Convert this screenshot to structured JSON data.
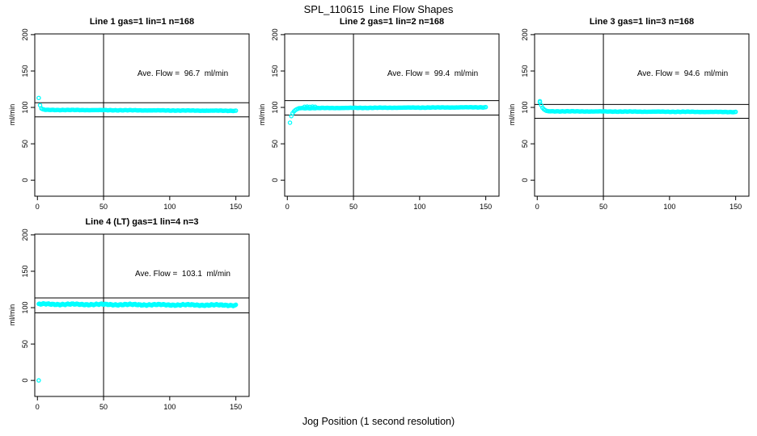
{
  "page_title": "SPL_110615  Line Flow Shapes",
  "chart_data": {
    "type": "scatter",
    "title": "SPL_110615  Line Flow Shapes",
    "xlabel": "Jog Position (1 second resolution)",
    "ylabel": "ml/min",
    "point_color": "#00FFFF",
    "line_color": "#000000",
    "x_ticks": [
      0,
      50,
      100,
      150
    ],
    "y_ticks": [
      0,
      50,
      100,
      150,
      200
    ],
    "xlim": [
      -2,
      160
    ],
    "ylim": [
      -22,
      201
    ],
    "vline_x": 50,
    "grid": false,
    "legend": "none",
    "panels": [
      {
        "title": "Line 1 gas=1 lin=1 n=168",
        "n": 168,
        "ave_flow": 96.7,
        "ave_flow_label": "Ave. Flow =  96.7  ml/min",
        "hlines": [
          106.4,
          87.0
        ],
        "head_points": [
          [
            1,
            113
          ],
          [
            2,
            103
          ],
          [
            3,
            98.6
          ],
          [
            4,
            97.6
          ],
          [
            5,
            97.1
          ]
        ],
        "band": {
          "x_from": 6,
          "x_to": 150,
          "step": 1,
          "y_from": 96.6,
          "y_to": 95.4,
          "jitter": 0.3
        },
        "extra_points": []
      },
      {
        "title": "Line 2 gas=1 lin=2 n=168",
        "n": 168,
        "ave_flow": 99.4,
        "ave_flow_label": "Ave. Flow =  99.4  ml/min",
        "hlines": [
          109.3,
          89.5
        ],
        "head_points": [
          [
            2,
            79
          ],
          [
            3,
            88
          ],
          [
            4,
            92
          ],
          [
            5,
            94.5
          ],
          [
            6,
            96.2
          ],
          [
            7,
            97.4
          ],
          [
            8,
            98.2
          ]
        ],
        "band": {
          "x_from": 9,
          "x_to": 150,
          "step": 1,
          "y_from": 99.0,
          "y_to": 100.2,
          "jitter": 0.3
        },
        "extra_points": [
          [
            13,
            100.9
          ],
          [
            15,
            101.1
          ],
          [
            17,
            100.8
          ],
          [
            19,
            101.2
          ],
          [
            21,
            100.9
          ]
        ]
      },
      {
        "title": "Line 3 gas=1 lin=3 n=168",
        "n": 168,
        "ave_flow": 94.6,
        "ave_flow_label": "Ave. Flow =  94.6  ml/min",
        "hlines": [
          104.1,
          85.1
        ],
        "head_points": [
          [
            2,
            108.5
          ],
          [
            2,
            107
          ],
          [
            3,
            103
          ],
          [
            4,
            99.5
          ],
          [
            5,
            97.5
          ],
          [
            6,
            96.2
          ],
          [
            7,
            95.3
          ]
        ],
        "band": {
          "x_from": 8,
          "x_to": 150,
          "step": 1,
          "y_from": 94.7,
          "y_to": 93.7,
          "jitter": 0.3
        },
        "extra_points": []
      },
      {
        "title": "Line 4 (LT) gas=1 lin=4 n=3",
        "n": 3,
        "ave_flow": 103.1,
        "ave_flow_label": "Ave. Flow =  103.1  ml/min",
        "hlines": [
          113.4,
          92.8
        ],
        "head_points": [
          [
            1,
            0
          ]
        ],
        "band": {
          "x_from": 1,
          "x_to": 150,
          "step": 0.5,
          "y_from": 104.8,
          "y_to": 103.4,
          "jitter": 1.0
        },
        "extra_points": []
      }
    ]
  }
}
